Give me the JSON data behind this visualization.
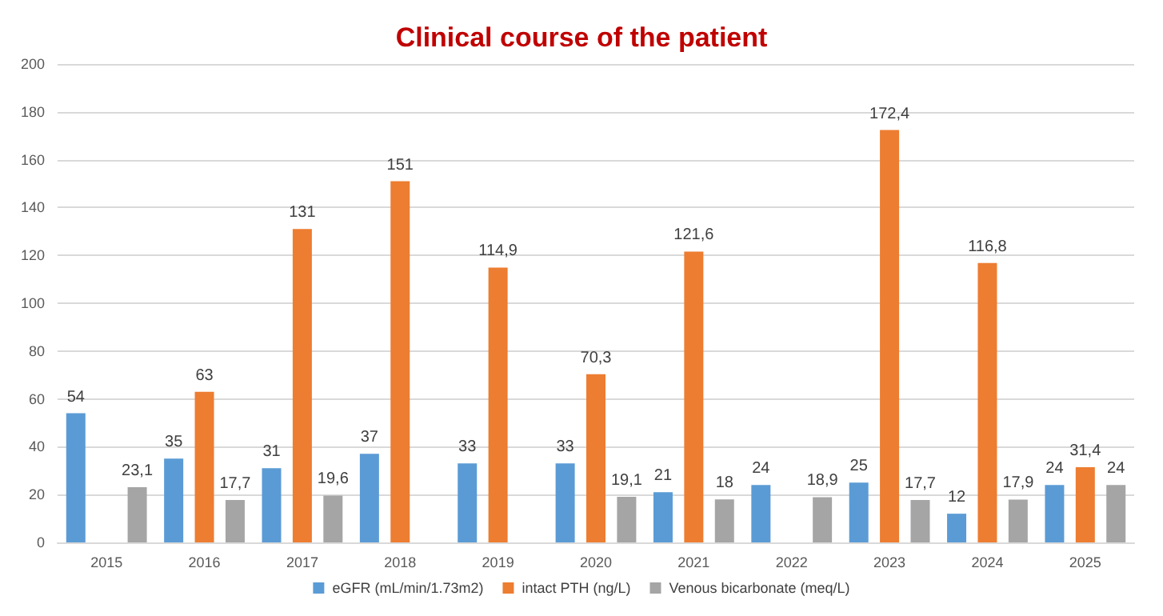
{
  "chart_data": {
    "type": "bar",
    "title": "Clinical course of the patient",
    "categories": [
      "2015",
      "2016",
      "2017",
      "2018",
      "2019",
      "2020",
      "2021",
      "2022",
      "2023",
      "2024",
      "2025"
    ],
    "series": [
      {
        "name": "eGFR (mL/min/1.73m2)",
        "color": "#5b9bd5",
        "values": [
          54,
          35,
          31,
          37,
          33,
          33,
          21,
          24,
          25,
          12,
          24
        ],
        "value_labels": [
          "54",
          "35",
          "31",
          "37",
          "33",
          "33",
          "21",
          "24",
          "25",
          "12",
          "24"
        ]
      },
      {
        "name": "intact PTH (ng/L)",
        "color": "#ed7d31",
        "values": [
          null,
          63,
          131,
          151,
          114.9,
          70.3,
          121.6,
          null,
          172.4,
          116.8,
          31.4
        ],
        "value_labels": [
          null,
          "63",
          "131",
          "151",
          "114,9",
          "70,3",
          "121,6",
          null,
          "172,4",
          "116,8",
          "31,4"
        ]
      },
      {
        "name": "Venous bicarbonate (meq/L)",
        "color": "#a5a5a5",
        "values": [
          23.1,
          17.7,
          19.6,
          null,
          null,
          19.1,
          18,
          18.9,
          17.7,
          17.9,
          24
        ],
        "value_labels": [
          "23,1",
          "17,7",
          "19,6",
          null,
          null,
          "19,1",
          "18",
          "18,9",
          "17,7",
          "17,9",
          "24"
        ]
      }
    ],
    "ylim": [
      0,
      200
    ],
    "yticks": [
      0,
      20,
      40,
      60,
      80,
      100,
      120,
      140,
      160,
      180,
      200
    ],
    "grid": "y",
    "legend": "bottom"
  }
}
